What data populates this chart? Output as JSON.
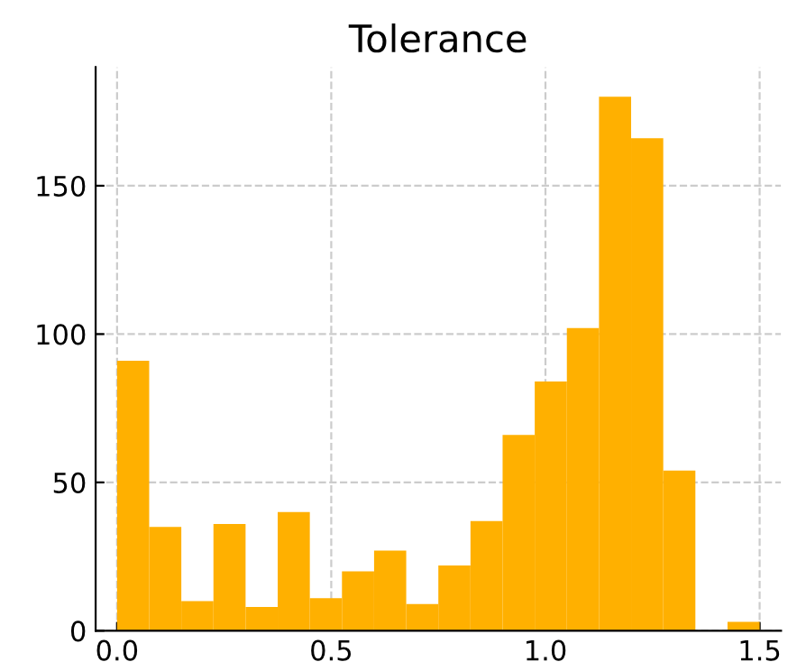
{
  "chart_data": {
    "type": "histogram",
    "title": "Tolerance",
    "bins": [
      0,
      0.075,
      0.15,
      0.225,
      0.3,
      0.375,
      0.45,
      0.525,
      0.6,
      0.675,
      0.75,
      0.825,
      0.9,
      0.975,
      1.05,
      1.125,
      1.2,
      1.275,
      1.35,
      1.425,
      1.5
    ],
    "values": [
      91,
      35,
      10,
      36,
      8,
      40,
      11,
      20,
      27,
      9,
      22,
      37,
      66,
      84,
      102,
      180,
      166,
      54,
      0,
      3
    ],
    "color": "#ffb000",
    "xlim": [
      -0.05,
      1.55
    ],
    "ylim": [
      0,
      190
    ],
    "xticks": [
      {
        "value": 0,
        "label": "0.0"
      },
      {
        "value": 0.5,
        "label": "0.5"
      },
      {
        "value": 1,
        "label": "1.0"
      },
      {
        "value": 1.5,
        "label": "1.5"
      }
    ],
    "yticks": [
      0,
      50,
      100,
      150
    ],
    "grid": true
  }
}
